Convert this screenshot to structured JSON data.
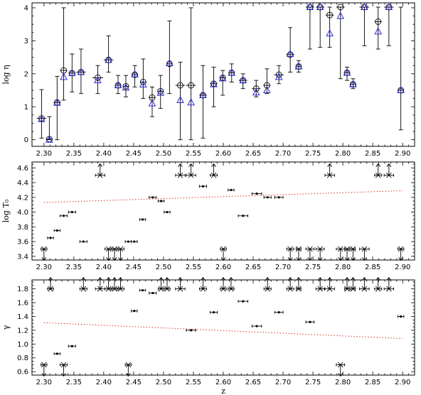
{
  "chart_data": [
    {
      "type": "scatter",
      "name": "eta",
      "xlabel": "",
      "ylabel": "log η",
      "xlim": [
        2.28,
        2.92
      ],
      "ylim": [
        -0.2,
        4.15
      ],
      "xticks": [
        "2.30",
        "2.35",
        "2.40",
        "2.45",
        "2.50",
        "2.55",
        "2.60",
        "2.65",
        "2.70",
        "2.75",
        "2.80",
        "2.85",
        "2.90"
      ],
      "yticks": [
        "0",
        "1",
        "2",
        "3",
        "4"
      ],
      "grid": false,
      "series": [
        {
          "marker": "circle",
          "points": [
            {
              "x": 2.296,
              "y": 0.65,
              "ylo": 0.05,
              "yhi": 1.52,
              "xerr": 0.008
            },
            {
              "x": 2.309,
              "y": 0.02,
              "ylo": 0.0,
              "yhi": 0.7,
              "xerr": 0.006
            },
            {
              "x": 2.322,
              "y": 1.13,
              "ylo": 0.0,
              "yhi": 1.92,
              "xerr": 0.006
            },
            {
              "x": 2.333,
              "y": 2.1,
              "ylo": 1.2,
              "yhi": 4.0,
              "xerr": 0.006
            },
            {
              "x": 2.347,
              "y": 2.02,
              "ylo": 1.45,
              "yhi": 2.6,
              "xerr": 0.006
            },
            {
              "x": 2.362,
              "y": 2.05,
              "ylo": 1.4,
              "yhi": 2.75,
              "xerr": 0.008
            },
            {
              "x": 2.39,
              "y": 1.88,
              "ylo": 1.4,
              "yhi": 2.25,
              "xerr": 0.009
            },
            {
              "x": 2.408,
              "y": 2.42,
              "ylo": 2.05,
              "yhi": 3.15,
              "xerr": 0.008
            },
            {
              "x": 2.424,
              "y": 1.65,
              "ylo": 1.4,
              "yhi": 1.95,
              "xerr": 0.005
            },
            {
              "x": 2.437,
              "y": 1.62,
              "ylo": 1.3,
              "yhi": 1.95,
              "xerr": 0.005
            },
            {
              "x": 2.452,
              "y": 1.97,
              "ylo": 1.6,
              "yhi": 2.25,
              "xerr": 0.005
            },
            {
              "x": 2.466,
              "y": 1.75,
              "ylo": 1.25,
              "yhi": 2.45,
              "xerr": 0.005
            },
            {
              "x": 2.481,
              "y": 1.28,
              "ylo": 0.7,
              "yhi": 1.6,
              "xerr": 0.006
            },
            {
              "x": 2.495,
              "y": 1.47,
              "ylo": 0.95,
              "yhi": 1.95,
              "xerr": 0.005
            },
            {
              "x": 2.51,
              "y": 2.3,
              "ylo": 1.4,
              "yhi": 3.6,
              "xerr": 0.005
            },
            {
              "x": 2.528,
              "y": 1.65,
              "ylo": 0.0,
              "yhi": 2.35,
              "xerr": 0.008
            },
            {
              "x": 2.546,
              "y": 1.65,
              "ylo": 0.0,
              "yhi": 4.0,
              "xerr": 0.008
            },
            {
              "x": 2.566,
              "y": 1.35,
              "ylo": 0.05,
              "yhi": 2.25,
              "xerr": 0.006
            },
            {
              "x": 2.584,
              "y": 1.7,
              "ylo": 1.0,
              "yhi": 2.2,
              "xerr": 0.006
            },
            {
              "x": 2.599,
              "y": 1.88,
              "ylo": 1.35,
              "yhi": 2.1,
              "xerr": 0.005
            },
            {
              "x": 2.614,
              "y": 2.03,
              "ylo": 1.75,
              "yhi": 2.3,
              "xerr": 0.005
            },
            {
              "x": 2.633,
              "y": 1.8,
              "ylo": 1.55,
              "yhi": 2.0,
              "xerr": 0.007
            },
            {
              "x": 2.655,
              "y": 1.55,
              "ylo": 1.3,
              "yhi": 1.8,
              "xerr": 0.007
            },
            {
              "x": 2.673,
              "y": 1.65,
              "ylo": 1.4,
              "yhi": 2.15,
              "xerr": 0.006
            },
            {
              "x": 2.693,
              "y": 1.97,
              "ylo": 1.7,
              "yhi": 2.25,
              "xerr": 0.008
            },
            {
              "x": 2.712,
              "y": 2.58,
              "ylo": 2.05,
              "yhi": 3.4,
              "xerr": 0.007
            },
            {
              "x": 2.726,
              "y": 2.22,
              "ylo": 2.05,
              "yhi": 2.4,
              "xerr": 0.004
            },
            {
              "x": 2.745,
              "y": 4.02,
              "ylo": 2.75,
              "yhi": 4.02,
              "xerr": 0.007
            },
            {
              "x": 2.762,
              "y": 4.02,
              "ylo": 2.8,
              "yhi": 4.02,
              "xerr": 0.007
            },
            {
              "x": 2.778,
              "y": 3.78,
              "ylo": 2.8,
              "yhi": 4.02,
              "xerr": 0.007
            },
            {
              "x": 2.796,
              "y": 4.02,
              "ylo": 1.85,
              "yhi": 4.02,
              "xerr": 0.007
            },
            {
              "x": 2.807,
              "y": 2.03,
              "ylo": 1.8,
              "yhi": 2.2,
              "xerr": 0.004
            },
            {
              "x": 2.817,
              "y": 1.68,
              "ylo": 1.55,
              "yhi": 1.85,
              "xerr": 0.004
            },
            {
              "x": 2.836,
              "y": 4.02,
              "ylo": 2.85,
              "yhi": 4.02,
              "xerr": 0.008
            },
            {
              "x": 2.859,
              "y": 3.58,
              "ylo": 2.75,
              "yhi": 4.02,
              "xerr": 0.006
            },
            {
              "x": 2.877,
              "y": 4.02,
              "ylo": 2.85,
              "yhi": 4.02,
              "xerr": 0.008
            },
            {
              "x": 2.897,
              "y": 1.5,
              "ylo": 0.3,
              "yhi": 4.02,
              "xerr": 0.005
            }
          ]
        },
        {
          "marker": "triangle",
          "color": "#2b2bd6",
          "points": [
            {
              "x": 2.296,
              "y": 0.62
            },
            {
              "x": 2.309,
              "y": 0.0
            },
            {
              "x": 2.322,
              "y": 1.12
            },
            {
              "x": 2.333,
              "y": 1.9
            },
            {
              "x": 2.347,
              "y": 2.02
            },
            {
              "x": 2.362,
              "y": 2.05
            },
            {
              "x": 2.39,
              "y": 1.8
            },
            {
              "x": 2.408,
              "y": 2.42
            },
            {
              "x": 2.424,
              "y": 1.65
            },
            {
              "x": 2.437,
              "y": 1.58
            },
            {
              "x": 2.452,
              "y": 1.98
            },
            {
              "x": 2.466,
              "y": 1.67
            },
            {
              "x": 2.481,
              "y": 1.1
            },
            {
              "x": 2.495,
              "y": 1.42
            },
            {
              "x": 2.51,
              "y": 2.32
            },
            {
              "x": 2.528,
              "y": 1.2
            },
            {
              "x": 2.546,
              "y": 1.13
            },
            {
              "x": 2.566,
              "y": 1.35
            },
            {
              "x": 2.584,
              "y": 1.68
            },
            {
              "x": 2.599,
              "y": 1.86
            },
            {
              "x": 2.614,
              "y": 2.03
            },
            {
              "x": 2.633,
              "y": 1.8
            },
            {
              "x": 2.655,
              "y": 1.43
            },
            {
              "x": 2.673,
              "y": 1.5
            },
            {
              "x": 2.693,
              "y": 1.9
            },
            {
              "x": 2.712,
              "y": 2.6
            },
            {
              "x": 2.726,
              "y": 2.22
            },
            {
              "x": 2.745,
              "y": 4.02
            },
            {
              "x": 2.762,
              "y": 4.02
            },
            {
              "x": 2.778,
              "y": 3.22
            },
            {
              "x": 2.796,
              "y": 3.75
            },
            {
              "x": 2.807,
              "y": 2.03
            },
            {
              "x": 2.817,
              "y": 1.68
            },
            {
              "x": 2.836,
              "y": 4.02
            },
            {
              "x": 2.859,
              "y": 3.28
            },
            {
              "x": 2.877,
              "y": 4.02
            },
            {
              "x": 2.897,
              "y": 1.5
            }
          ]
        }
      ]
    },
    {
      "type": "scatter",
      "name": "T0",
      "xlabel": "",
      "ylabel": "log T₀",
      "xlim": [
        2.28,
        2.92
      ],
      "ylim": [
        3.35,
        4.68
      ],
      "xticks": [
        "2.30",
        "2.35",
        "2.40",
        "2.45",
        "2.50",
        "2.55",
        "2.60",
        "2.65",
        "2.70",
        "2.75",
        "2.80",
        "2.85",
        "2.90"
      ],
      "yticks": [
        "3.4",
        "3.6",
        "3.8",
        "4.0",
        "4.2",
        "4.4",
        "4.6"
      ],
      "grid": false,
      "trend": {
        "x": [
          2.3,
          2.9
        ],
        "y": [
          4.13,
          4.29
        ],
        "color": "#e0302a"
      },
      "points": [
        {
          "x": 2.3,
          "y": 3.5,
          "xerr": 0.005,
          "limit": "lower"
        },
        {
          "x": 2.311,
          "y": 3.65,
          "xerr": 0.005,
          "limit": "none"
        },
        {
          "x": 2.322,
          "y": 3.75,
          "xerr": 0.005,
          "limit": "none"
        },
        {
          "x": 2.333,
          "y": 3.95,
          "xerr": 0.006,
          "limit": "none"
        },
        {
          "x": 2.347,
          "y": 4.0,
          "xerr": 0.006,
          "limit": "none"
        },
        {
          "x": 2.366,
          "y": 3.6,
          "xerr": 0.006,
          "limit": "none"
        },
        {
          "x": 2.394,
          "y": 4.5,
          "xerr": 0.008,
          "limit": "upper"
        },
        {
          "x": 2.408,
          "y": 3.5,
          "xerr": 0.006,
          "limit": "lower"
        },
        {
          "x": 2.418,
          "y": 3.5,
          "xerr": 0.006,
          "limit": "lower"
        },
        {
          "x": 2.428,
          "y": 3.5,
          "xerr": 0.006,
          "limit": "lower"
        },
        {
          "x": 2.441,
          "y": 3.6,
          "xerr": 0.005,
          "limit": "none"
        },
        {
          "x": 2.451,
          "y": 3.6,
          "xerr": 0.005,
          "limit": "none"
        },
        {
          "x": 2.465,
          "y": 3.9,
          "xerr": 0.005,
          "limit": "none"
        },
        {
          "x": 2.482,
          "y": 4.2,
          "xerr": 0.006,
          "limit": "none"
        },
        {
          "x": 2.496,
          "y": 4.15,
          "xerr": 0.005,
          "limit": "none"
        },
        {
          "x": 2.506,
          "y": 4.0,
          "xerr": 0.005,
          "limit": "none"
        },
        {
          "x": 2.528,
          "y": 4.5,
          "xerr": 0.008,
          "limit": "upper"
        },
        {
          "x": 2.546,
          "y": 4.5,
          "xerr": 0.008,
          "limit": "upper"
        },
        {
          "x": 2.566,
          "y": 4.35,
          "xerr": 0.006,
          "limit": "none"
        },
        {
          "x": 2.584,
          "y": 4.5,
          "xerr": 0.006,
          "limit": "upper"
        },
        {
          "x": 2.6,
          "y": 3.5,
          "xerr": 0.005,
          "limit": "lower"
        },
        {
          "x": 2.613,
          "y": 4.3,
          "xerr": 0.005,
          "limit": "none"
        },
        {
          "x": 2.633,
          "y": 3.95,
          "xerr": 0.008,
          "limit": "none"
        },
        {
          "x": 2.656,
          "y": 4.25,
          "xerr": 0.008,
          "limit": "none"
        },
        {
          "x": 2.674,
          "y": 4.2,
          "xerr": 0.006,
          "limit": "none"
        },
        {
          "x": 2.693,
          "y": 4.2,
          "xerr": 0.007,
          "limit": "none"
        },
        {
          "x": 2.712,
          "y": 3.5,
          "xerr": 0.006,
          "limit": "lower"
        },
        {
          "x": 2.726,
          "y": 3.5,
          "xerr": 0.004,
          "limit": "lower"
        },
        {
          "x": 2.745,
          "y": 3.5,
          "xerr": 0.007,
          "limit": "lower"
        },
        {
          "x": 2.762,
          "y": 3.5,
          "xerr": 0.007,
          "limit": "lower"
        },
        {
          "x": 2.778,
          "y": 4.5,
          "xerr": 0.008,
          "limit": "upper"
        },
        {
          "x": 2.796,
          "y": 3.5,
          "xerr": 0.007,
          "limit": "lower"
        },
        {
          "x": 2.807,
          "y": 3.5,
          "xerr": 0.004,
          "limit": "lower"
        },
        {
          "x": 2.817,
          "y": 3.5,
          "xerr": 0.004,
          "limit": "lower"
        },
        {
          "x": 2.836,
          "y": 3.5,
          "xerr": 0.008,
          "limit": "lower"
        },
        {
          "x": 2.859,
          "y": 4.5,
          "xerr": 0.006,
          "limit": "upper"
        },
        {
          "x": 2.877,
          "y": 4.5,
          "xerr": 0.008,
          "limit": "upper"
        },
        {
          "x": 2.897,
          "y": 3.5,
          "xerr": 0.005,
          "limit": "lower"
        }
      ]
    },
    {
      "type": "scatter",
      "name": "gamma",
      "xlabel": "z",
      "ylabel": "γ",
      "xlim": [
        2.28,
        2.92
      ],
      "ylim": [
        0.55,
        1.93
      ],
      "xticks": [
        "2.30",
        "2.35",
        "2.40",
        "2.45",
        "2.50",
        "2.55",
        "2.60",
        "2.65",
        "2.70",
        "2.75",
        "2.80",
        "2.85",
        "2.90"
      ],
      "yticks": [
        "0.6",
        "0.8",
        "1.0",
        "1.2",
        "1.4",
        "1.6",
        "1.8"
      ],
      "grid": false,
      "trend": {
        "x": [
          2.3,
          2.9
        ],
        "y": [
          1.31,
          1.08
        ],
        "color": "#e0302a"
      },
      "points": [
        {
          "x": 2.3,
          "y": 0.7,
          "xerr": 0.005,
          "limit": "lower"
        },
        {
          "x": 2.311,
          "y": 1.8,
          "xerr": 0.005,
          "limit": "upper"
        },
        {
          "x": 2.322,
          "y": 0.86,
          "xerr": 0.005,
          "limit": "none"
        },
        {
          "x": 2.333,
          "y": 0.7,
          "xerr": 0.006,
          "limit": "lower"
        },
        {
          "x": 2.347,
          "y": 0.97,
          "xerr": 0.006,
          "limit": "none"
        },
        {
          "x": 2.366,
          "y": 1.8,
          "xerr": 0.006,
          "limit": "upper"
        },
        {
          "x": 2.394,
          "y": 1.8,
          "xerr": 0.008,
          "limit": "upper"
        },
        {
          "x": 2.408,
          "y": 1.8,
          "xerr": 0.006,
          "limit": "upper"
        },
        {
          "x": 2.418,
          "y": 1.8,
          "xerr": 0.006,
          "limit": "upper"
        },
        {
          "x": 2.428,
          "y": 1.8,
          "xerr": 0.006,
          "limit": "upper"
        },
        {
          "x": 2.441,
          "y": 0.7,
          "xerr": 0.005,
          "limit": "lower"
        },
        {
          "x": 2.451,
          "y": 1.48,
          "xerr": 0.005,
          "limit": "none"
        },
        {
          "x": 2.465,
          "y": 1.78,
          "xerr": 0.005,
          "limit": "none"
        },
        {
          "x": 2.482,
          "y": 1.74,
          "xerr": 0.006,
          "limit": "none"
        },
        {
          "x": 2.496,
          "y": 1.8,
          "xerr": 0.005,
          "limit": "upper"
        },
        {
          "x": 2.506,
          "y": 1.8,
          "xerr": 0.005,
          "limit": "upper"
        },
        {
          "x": 2.528,
          "y": 1.8,
          "xerr": 0.008,
          "limit": "upper"
        },
        {
          "x": 2.546,
          "y": 1.2,
          "xerr": 0.008,
          "limit": "none"
        },
        {
          "x": 2.566,
          "y": 1.8,
          "xerr": 0.006,
          "limit": "upper"
        },
        {
          "x": 2.584,
          "y": 1.46,
          "xerr": 0.006,
          "limit": "none"
        },
        {
          "x": 2.6,
          "y": 1.8,
          "xerr": 0.005,
          "limit": "upper"
        },
        {
          "x": 2.613,
          "y": 1.8,
          "xerr": 0.005,
          "limit": "upper"
        },
        {
          "x": 2.633,
          "y": 1.62,
          "xerr": 0.008,
          "limit": "none"
        },
        {
          "x": 2.656,
          "y": 1.26,
          "xerr": 0.008,
          "limit": "none"
        },
        {
          "x": 2.674,
          "y": 1.8,
          "xerr": 0.006,
          "limit": "upper"
        },
        {
          "x": 2.693,
          "y": 1.46,
          "xerr": 0.007,
          "limit": "none"
        },
        {
          "x": 2.712,
          "y": 1.8,
          "xerr": 0.006,
          "limit": "upper"
        },
        {
          "x": 2.726,
          "y": 1.8,
          "xerr": 0.004,
          "limit": "upper"
        },
        {
          "x": 2.745,
          "y": 1.32,
          "xerr": 0.007,
          "limit": "none"
        },
        {
          "x": 2.762,
          "y": 1.8,
          "xerr": 0.007,
          "limit": "upper"
        },
        {
          "x": 2.778,
          "y": 1.8,
          "xerr": 0.008,
          "limit": "upper"
        },
        {
          "x": 2.796,
          "y": 0.7,
          "xerr": 0.007,
          "limit": "lower"
        },
        {
          "x": 2.807,
          "y": 1.8,
          "xerr": 0.004,
          "limit": "upper"
        },
        {
          "x": 2.817,
          "y": 1.8,
          "xerr": 0.004,
          "limit": "upper"
        },
        {
          "x": 2.836,
          "y": 1.8,
          "xerr": 0.008,
          "limit": "upper"
        },
        {
          "x": 2.859,
          "y": 1.8,
          "xerr": 0.006,
          "limit": "upper"
        },
        {
          "x": 2.877,
          "y": 1.8,
          "xerr": 0.008,
          "limit": "upper"
        },
        {
          "x": 2.897,
          "y": 1.4,
          "xerr": 0.005,
          "limit": "none"
        }
      ]
    }
  ]
}
